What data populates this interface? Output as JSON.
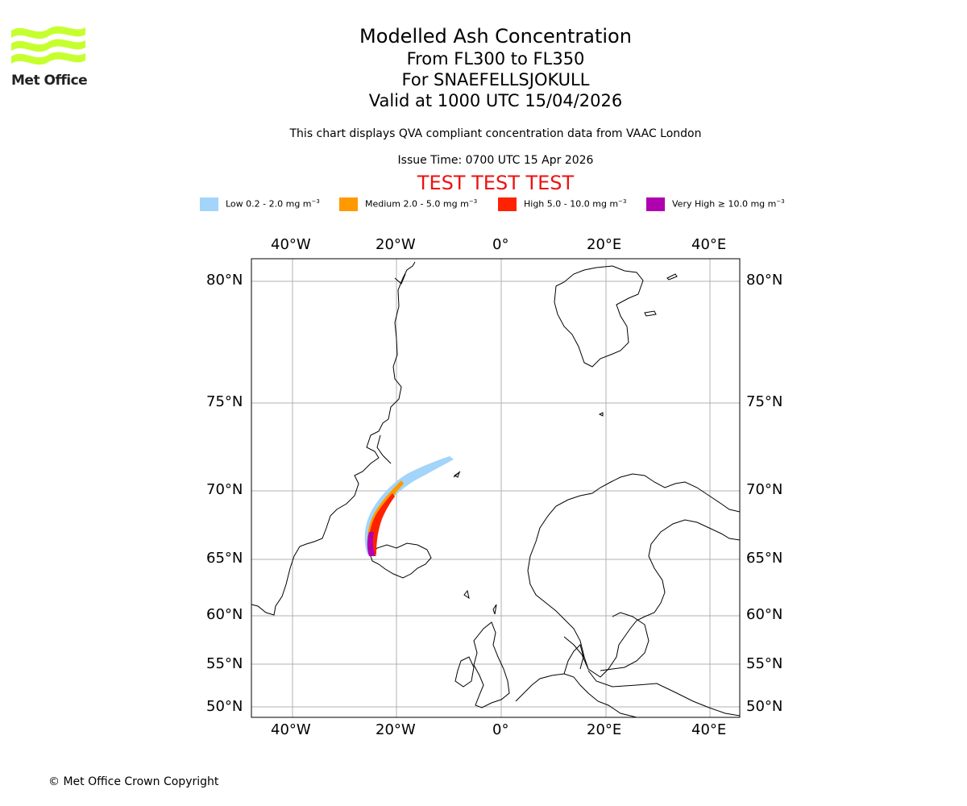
{
  "logo": {
    "text": "Met Office",
    "color": "#c6ff2e"
  },
  "header": {
    "title": "Modelled Ash Concentration",
    "levels": "From FL300 to FL350",
    "volcano": "For SNAEFELLSJOKULL",
    "valid": "Valid at 1000 UTC 15/04/2026",
    "note": "This chart displays QVA compliant concentration data from VAAC London",
    "issue": "Issue Time: 0700 UTC 15 Apr 2026",
    "test_banner": "TEST TEST TEST"
  },
  "legend": [
    {
      "label": "Low 0.2 - 2.0 mg m",
      "color": "#a3d4fa"
    },
    {
      "label": "Medium 2.0 - 5.0 mg m",
      "color": "#ff9900"
    },
    {
      "label": "High 5.0 - 10.0 mg m",
      "color": "#ff2200"
    },
    {
      "label": "Very High  ≥  10.0 mg m",
      "color": "#b000b0"
    }
  ],
  "legend_unit_exponent": "−3",
  "map": {
    "lon_labels": [
      "40°W",
      "20°W",
      "0°",
      "20°E",
      "40°E"
    ],
    "lat_labels": [
      "80°N",
      "75°N",
      "70°N",
      "65°N",
      "60°N",
      "55°N",
      "50°N"
    ]
  },
  "footer": {
    "copyright": "© Met Office Crown Copyright"
  }
}
